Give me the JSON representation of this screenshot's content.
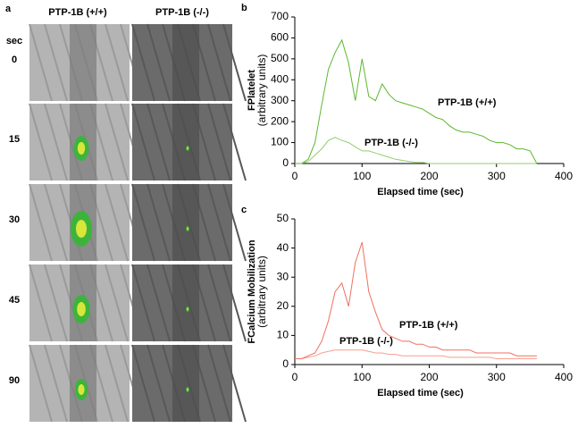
{
  "panel_a": {
    "label": "a",
    "columns": [
      "PTP-1B (+/+)",
      "PTP-1B (-/-)"
    ],
    "time_header": "sec",
    "times": [
      "0",
      "15",
      "30",
      "45",
      "90"
    ]
  },
  "chart_data": [
    {
      "type": "line",
      "panel": "b",
      "ylabel": "FPlatelet",
      "ylabel_note": "(arbitrary units)",
      "xlabel": "Elapsed time (sec)",
      "x": [
        0,
        10,
        20,
        30,
        40,
        50,
        60,
        70,
        80,
        90,
        100,
        110,
        120,
        130,
        140,
        150,
        160,
        170,
        180,
        190,
        200,
        210,
        220,
        230,
        240,
        250,
        260,
        270,
        280,
        290,
        300,
        310,
        320,
        330,
        340,
        350,
        360
      ],
      "series": [
        {
          "name": "PTP-1B (+/+)",
          "color": "#5cb82e",
          "values": [
            0,
            0,
            20,
            100,
            280,
            450,
            530,
            590,
            480,
            300,
            500,
            320,
            300,
            380,
            330,
            300,
            290,
            280,
            270,
            260,
            240,
            220,
            210,
            180,
            160,
            150,
            150,
            140,
            130,
            110,
            100,
            100,
            90,
            70,
            70,
            60,
            0
          ]
        },
        {
          "name": "PTP-1B (-/-)",
          "color": "#8fd06a",
          "values": [
            0,
            0,
            10,
            40,
            70,
            110,
            125,
            110,
            100,
            80,
            60,
            60,
            50,
            40,
            30,
            20,
            15,
            10,
            5,
            5,
            0,
            0,
            0,
            0,
            0,
            0,
            0,
            0,
            0,
            0,
            0,
            0,
            0,
            0,
            0,
            0,
            0
          ]
        }
      ],
      "xlim": [
        0,
        400
      ],
      "xticks": [
        0,
        100,
        200,
        300,
        400
      ],
      "ylim": [
        0,
        700
      ],
      "yticks": [
        0,
        100,
        200,
        300,
        400,
        500,
        600,
        700
      ]
    },
    {
      "type": "line",
      "panel": "c",
      "ylabel": "FCalcium Mobilization",
      "ylabel_note": "(arbitrary units)",
      "xlabel": "Elapsed time (sec)",
      "x": [
        0,
        10,
        20,
        30,
        40,
        50,
        60,
        70,
        80,
        90,
        100,
        110,
        120,
        130,
        140,
        150,
        160,
        170,
        180,
        190,
        200,
        210,
        220,
        230,
        240,
        250,
        260,
        270,
        280,
        290,
        300,
        310,
        320,
        330,
        340,
        350,
        360
      ],
      "series": [
        {
          "name": "PTP-1B (+/+)",
          "color": "#f07060",
          "values": [
            2,
            2,
            3,
            4,
            8,
            15,
            25,
            28,
            20,
            35,
            42,
            25,
            18,
            12,
            10,
            9,
            8,
            8,
            7,
            7,
            6,
            6,
            5,
            5,
            5,
            5,
            5,
            4,
            4,
            4,
            4,
            4,
            4,
            3,
            3,
            3,
            3
          ]
        },
        {
          "name": "PTP-1B (-/-)",
          "color": "#f4a090",
          "values": [
            2,
            2,
            2.5,
            3,
            4,
            4.5,
            5,
            5,
            5,
            5,
            5,
            4.5,
            4,
            4,
            3.5,
            3.5,
            3,
            3,
            3,
            3,
            3,
            3,
            3,
            2.5,
            2.5,
            2.5,
            2.5,
            2.5,
            2.5,
            2.5,
            2,
            2,
            2,
            2,
            2,
            2,
            2
          ]
        }
      ],
      "xlim": [
        0,
        400
      ],
      "xticks": [
        0,
        100,
        200,
        300,
        400
      ],
      "ylim": [
        0,
        50
      ],
      "yticks": [
        0,
        10,
        20,
        30,
        40,
        50
      ]
    }
  ]
}
